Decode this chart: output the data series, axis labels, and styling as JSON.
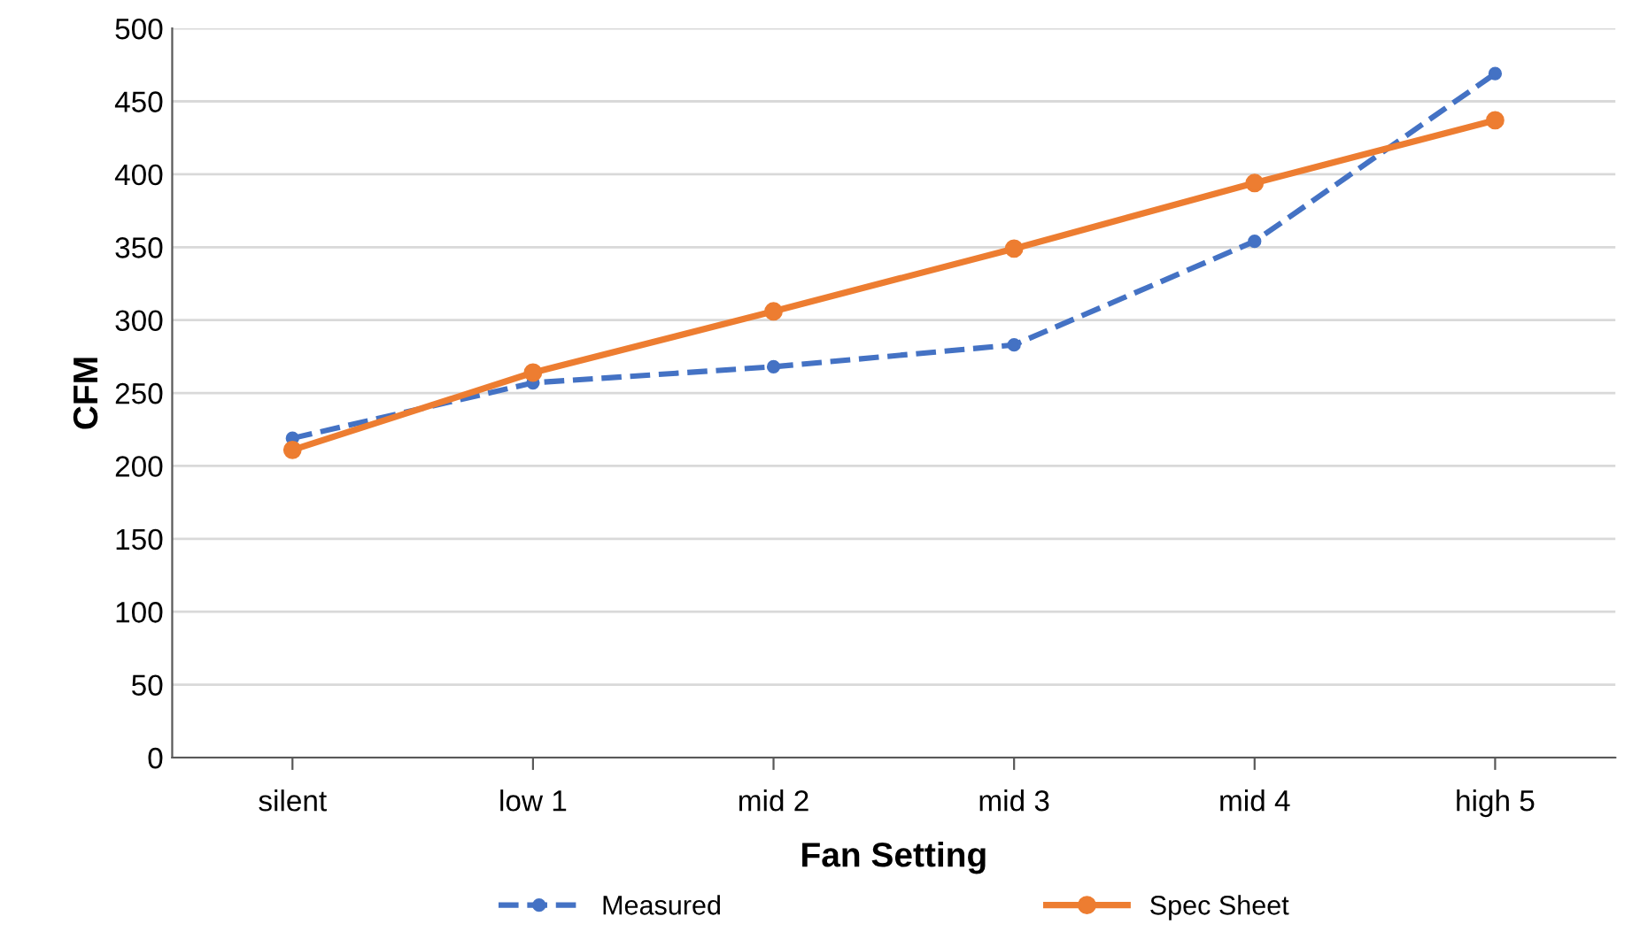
{
  "chart_data": {
    "type": "line",
    "xlabel": "Fan Setting",
    "ylabel": "CFM",
    "categories": [
      "silent",
      "low 1",
      "mid 2",
      "mid 3",
      "mid 4",
      "high 5"
    ],
    "series": [
      {
        "name": "Measured",
        "color": "#4472c4",
        "values": [
          219,
          257,
          268,
          283,
          354,
          469
        ],
        "line_style": "dashed",
        "marker": "circle"
      },
      {
        "name": "Spec Sheet",
        "color": "#ed7d31",
        "values": [
          211,
          264,
          306,
          349,
          394,
          437
        ],
        "line_style": "solid",
        "marker": "circle"
      }
    ],
    "ylim": [
      0,
      500
    ],
    "yticks": [
      0,
      50,
      100,
      150,
      200,
      250,
      300,
      350,
      400,
      450,
      500
    ],
    "grid": "y",
    "legend": "bottom"
  }
}
